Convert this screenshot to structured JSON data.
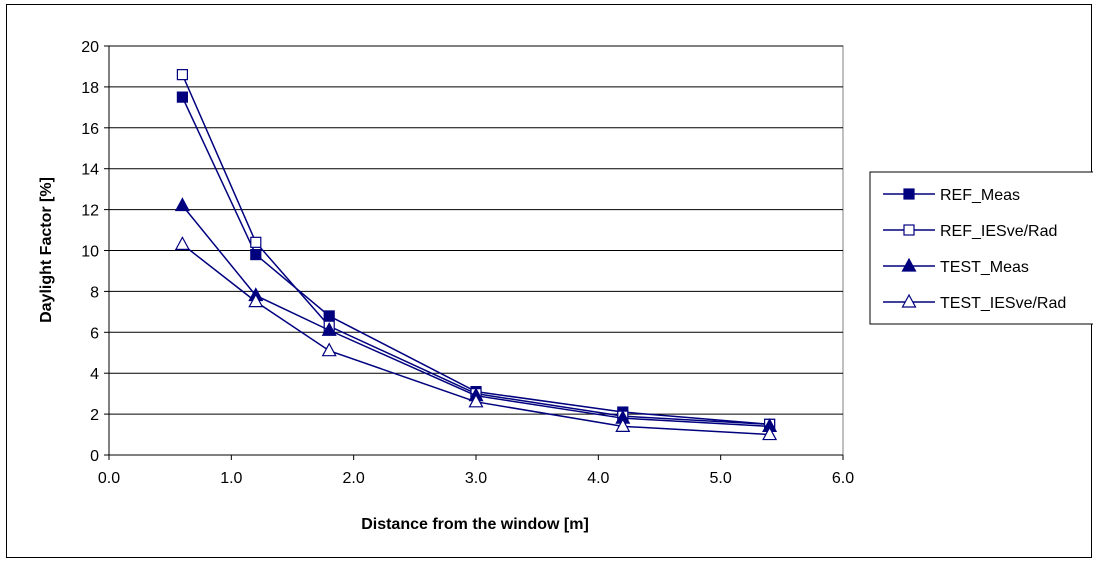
{
  "chart_data": {
    "type": "line",
    "xlabel": "Distance from the window [m]",
    "ylabel": "Daylight Factor [%]",
    "xlim": [
      0,
      6
    ],
    "ylim": [
      0,
      20
    ],
    "xticks": [
      "0.0",
      "1.0",
      "2.0",
      "3.0",
      "4.0",
      "5.0",
      "6.0"
    ],
    "yticks": [
      "0",
      "2",
      "4",
      "6",
      "8",
      "10",
      "12",
      "14",
      "16",
      "18",
      "20"
    ],
    "grid": "horizontal",
    "legend_position": "right",
    "line_color": "#00007f",
    "x": [
      0.6,
      1.2,
      1.8,
      3.0,
      4.2,
      5.4
    ],
    "series": [
      {
        "name": "REF_Meas",
        "marker": "filled-square",
        "values": [
          17.5,
          9.8,
          6.8,
          3.1,
          2.1,
          1.5
        ]
      },
      {
        "name": "REF_IESve/Rad",
        "marker": "open-square",
        "values": [
          18.6,
          10.4,
          6.3,
          3.0,
          1.9,
          1.5
        ]
      },
      {
        "name": "TEST_Meas",
        "marker": "filled-triangle",
        "values": [
          12.2,
          7.8,
          6.1,
          2.9,
          1.8,
          1.4
        ]
      },
      {
        "name": "TEST_IESve/Rad",
        "marker": "open-triangle",
        "values": [
          10.3,
          7.5,
          5.1,
          2.6,
          1.4,
          1.0
        ]
      }
    ]
  }
}
